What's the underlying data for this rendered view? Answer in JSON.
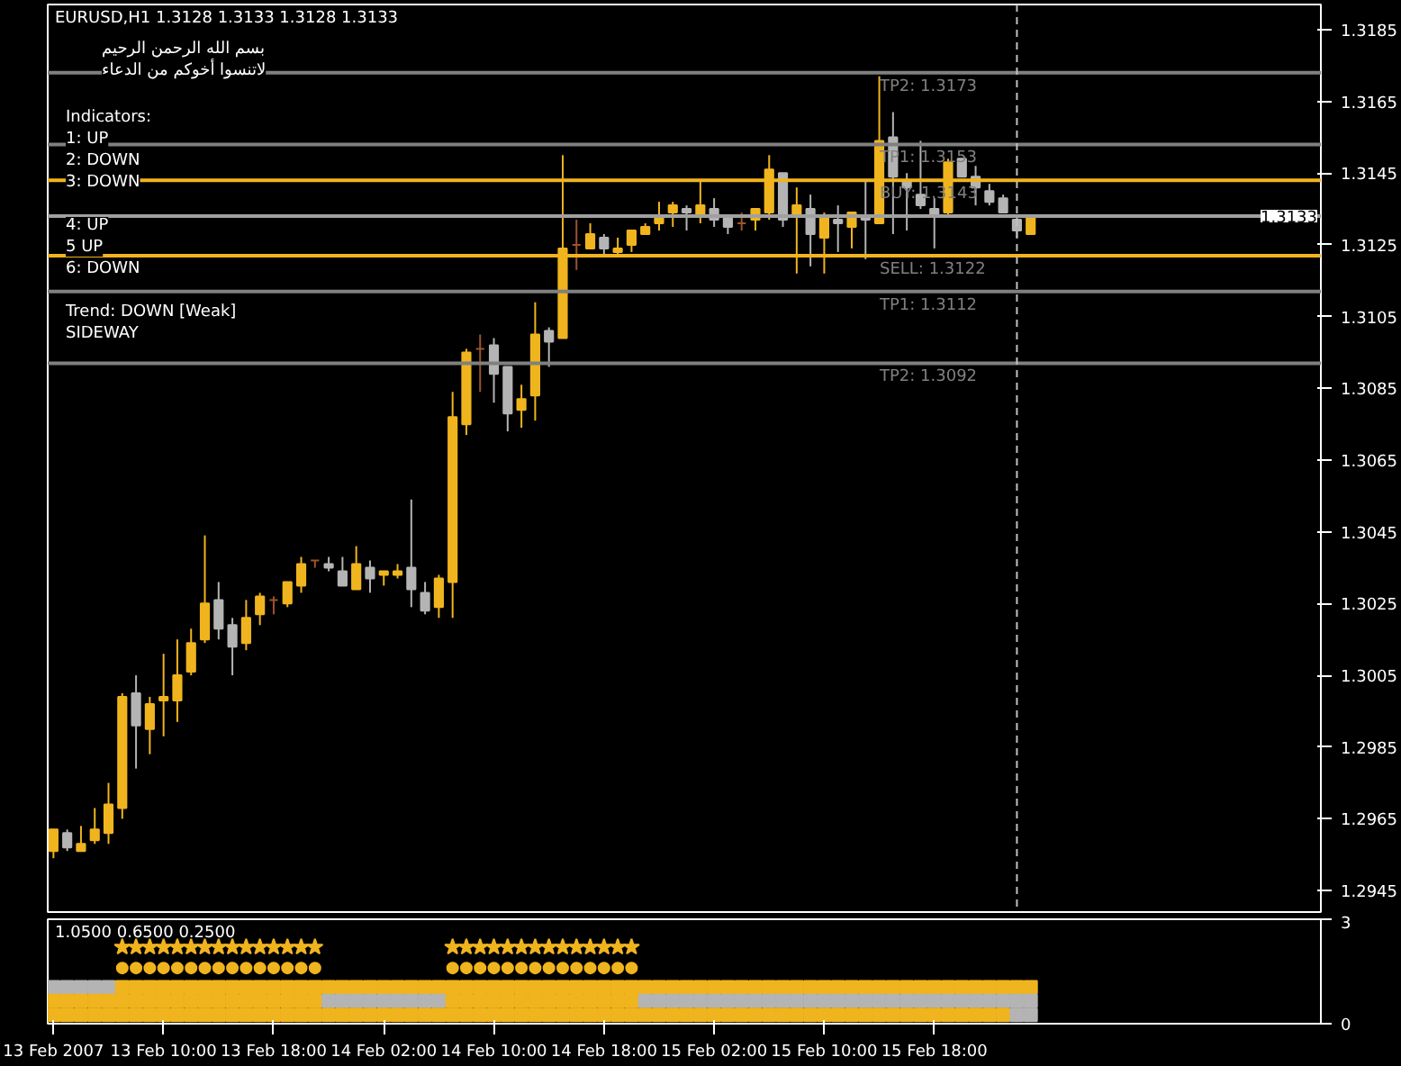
{
  "chart_data": [
    {
      "type": "candlestick",
      "title": "EURUSD,H1  1.3128 1.3133 1.3128 1.3133",
      "x": [
        "2007-02-13T02:00",
        "2007-02-13T03:00",
        "2007-02-13T04:00",
        "2007-02-13T05:00",
        "2007-02-13T06:00",
        "2007-02-13T07:00",
        "2007-02-13T08:00",
        "2007-02-13T09:00",
        "2007-02-13T10:00",
        "2007-02-13T11:00",
        "2007-02-13T12:00",
        "2007-02-13T13:00",
        "2007-02-13T14:00",
        "2007-02-13T15:00",
        "2007-02-13T16:00",
        "2007-02-13T17:00",
        "2007-02-13T18:00",
        "2007-02-13T19:00",
        "2007-02-13T20:00",
        "2007-02-13T21:00",
        "2007-02-13T22:00",
        "2007-02-13T23:00",
        "2007-02-14T00:00",
        "2007-02-14T01:00",
        "2007-02-14T02:00",
        "2007-02-14T03:00",
        "2007-02-14T04:00",
        "2007-02-14T05:00",
        "2007-02-14T06:00",
        "2007-02-14T07:00",
        "2007-02-14T08:00",
        "2007-02-14T09:00",
        "2007-02-14T10:00",
        "2007-02-14T11:00",
        "2007-02-14T12:00",
        "2007-02-14T13:00",
        "2007-02-14T14:00",
        "2007-02-14T15:00",
        "2007-02-14T16:00",
        "2007-02-14T17:00",
        "2007-02-14T18:00",
        "2007-02-14T19:00",
        "2007-02-14T20:00",
        "2007-02-14T21:00",
        "2007-02-14T22:00",
        "2007-02-14T23:00",
        "2007-02-15T00:00",
        "2007-02-15T01:00",
        "2007-02-15T02:00",
        "2007-02-15T03:00",
        "2007-02-15T04:00",
        "2007-02-15T05:00",
        "2007-02-15T06:00",
        "2007-02-15T07:00",
        "2007-02-15T08:00",
        "2007-02-15T09:00",
        "2007-02-15T10:00",
        "2007-02-15T11:00",
        "2007-02-15T12:00",
        "2007-02-15T13:00",
        "2007-02-15T14:00",
        "2007-02-15T15:00",
        "2007-02-15T16:00",
        "2007-02-15T17:00",
        "2007-02-15T18:00",
        "2007-02-15T19:00",
        "2007-02-15T20:00",
        "2007-02-15T21:00",
        "2007-02-15T22:00",
        "2007-02-15T23:00",
        "2007-02-16T00:00",
        "2007-02-16T01:00"
      ],
      "ohlc": [
        [
          1.2956,
          1.2962,
          1.2954,
          1.2962
        ],
        [
          1.2961,
          1.2962,
          1.2956,
          1.2957
        ],
        [
          1.2956,
          1.2963,
          1.2956,
          1.2958
        ],
        [
          1.2959,
          1.2968,
          1.2958,
          1.2962
        ],
        [
          1.2961,
          1.2975,
          1.2958,
          1.2969
        ],
        [
          1.2968,
          1.3,
          1.2965,
          1.2999
        ],
        [
          1.3,
          1.3005,
          1.2979,
          1.2991
        ],
        [
          1.299,
          1.2999,
          1.2983,
          1.2997
        ],
        [
          1.2998,
          1.3011,
          1.2988,
          1.2999
        ],
        [
          1.2998,
          1.3015,
          1.2992,
          1.3005
        ],
        [
          1.3006,
          1.3018,
          1.3005,
          1.3014
        ],
        [
          1.3015,
          1.3044,
          1.3014,
          1.3025
        ],
        [
          1.3026,
          1.3031,
          1.3015,
          1.3018
        ],
        [
          1.3019,
          1.3021,
          1.3005,
          1.3013
        ],
        [
          1.3014,
          1.3026,
          1.3012,
          1.3021
        ],
        [
          1.3022,
          1.3028,
          1.3019,
          1.3027
        ],
        [
          1.3026,
          1.3027,
          1.3022,
          1.3026
        ],
        [
          1.3025,
          1.3031,
          1.3024,
          1.3031
        ],
        [
          1.303,
          1.3038,
          1.3028,
          1.3036
        ],
        [
          1.3037,
          1.3037,
          1.3035,
          1.3037
        ],
        [
          1.3036,
          1.3038,
          1.3034,
          1.3035
        ],
        [
          1.3034,
          1.3038,
          1.303,
          1.303
        ],
        [
          1.3029,
          1.3041,
          1.3029,
          1.3036
        ],
        [
          1.3035,
          1.3037,
          1.3028,
          1.3032
        ],
        [
          1.3033,
          1.3034,
          1.303,
          1.3034
        ],
        [
          1.3033,
          1.3036,
          1.3032,
          1.3034
        ],
        [
          1.3035,
          1.3054,
          1.3024,
          1.3029
        ],
        [
          1.3028,
          1.3031,
          1.3022,
          1.3023
        ],
        [
          1.3024,
          1.3033,
          1.3021,
          1.3032
        ],
        [
          1.3031,
          1.3084,
          1.3021,
          1.3077
        ],
        [
          1.3075,
          1.3096,
          1.3072,
          1.3095
        ],
        [
          1.3096,
          1.31,
          1.3084,
          1.3096
        ],
        [
          1.3097,
          1.3099,
          1.3081,
          1.3089
        ],
        [
          1.3091,
          1.3091,
          1.3073,
          1.3078
        ],
        [
          1.3079,
          1.3086,
          1.3074,
          1.3082
        ],
        [
          1.3083,
          1.3109,
          1.3076,
          1.31
        ],
        [
          1.3101,
          1.3102,
          1.3091,
          1.3098
        ],
        [
          1.3099,
          1.315,
          1.3099,
          1.3124
        ],
        [
          1.3125,
          1.3132,
          1.3118,
          1.3125
        ],
        [
          1.3124,
          1.3131,
          1.3124,
          1.3128
        ],
        [
          1.3127,
          1.3128,
          1.3122,
          1.3124
        ],
        [
          1.3123,
          1.3127,
          1.3122,
          1.3124
        ],
        [
          1.3125,
          1.3129,
          1.3123,
          1.3129
        ],
        [
          1.3128,
          1.3131,
          1.3128,
          1.313
        ],
        [
          1.3131,
          1.3137,
          1.3129,
          1.3133
        ],
        [
          1.3134,
          1.3137,
          1.313,
          1.3136
        ],
        [
          1.3135,
          1.3136,
          1.3129,
          1.3134
        ],
        [
          1.3133,
          1.3143,
          1.3131,
          1.3136
        ],
        [
          1.3135,
          1.3138,
          1.313,
          1.3132
        ],
        [
          1.3133,
          1.3133,
          1.3128,
          1.313
        ],
        [
          1.3131,
          1.3134,
          1.3129,
          1.3131
        ],
        [
          1.3132,
          1.3135,
          1.3129,
          1.3135
        ],
        [
          1.3134,
          1.315,
          1.3132,
          1.3146
        ],
        [
          1.3145,
          1.3145,
          1.313,
          1.3132
        ],
        [
          1.3133,
          1.3141,
          1.3117,
          1.3136
        ],
        [
          1.3135,
          1.3139,
          1.3119,
          1.3128
        ],
        [
          1.3127,
          1.3134,
          1.3117,
          1.3133
        ],
        [
          1.3132,
          1.3136,
          1.3123,
          1.3131
        ],
        [
          1.313,
          1.3134,
          1.3124,
          1.3134
        ],
        [
          1.3133,
          1.3143,
          1.3121,
          1.3132
        ],
        [
          1.3131,
          1.3172,
          1.3131,
          1.3154
        ],
        [
          1.3155,
          1.3162,
          1.3128,
          1.3144
        ],
        [
          1.3143,
          1.3145,
          1.3129,
          1.3141
        ],
        [
          1.3139,
          1.3154,
          1.3135,
          1.3136
        ],
        [
          1.3135,
          1.3138,
          1.3124,
          1.3133
        ],
        [
          1.3134,
          1.3149,
          1.3133,
          1.3148
        ],
        [
          1.3149,
          1.3149,
          1.3144,
          1.3144
        ],
        [
          1.3144,
          1.3147,
          1.3136,
          1.3141
        ],
        [
          1.314,
          1.3142,
          1.3136,
          1.3137
        ],
        [
          1.3138,
          1.3139,
          1.3134,
          1.3134
        ],
        [
          1.3132,
          1.3133,
          1.3127,
          1.3129
        ],
        [
          1.3128,
          1.3133,
          1.3128,
          1.3133
        ]
      ],
      "colors": [
        "#f0b41e",
        "#b4b4b4",
        "#f0b41e",
        "#f0b41e",
        "#f0b41e",
        "#f0b41e",
        "#b4b4b4",
        "#f0b41e",
        "#f0b41e",
        "#f0b41e",
        "#f0b41e",
        "#f0b41e",
        "#b4b4b4",
        "#b4b4b4",
        "#f0b41e",
        "#f0b41e",
        "#a0522d",
        "#f0b41e",
        "#f0b41e",
        "#a0522d",
        "#b4b4b4",
        "#b4b4b4",
        "#f0b41e",
        "#b4b4b4",
        "#f0b41e",
        "#f0b41e",
        "#b4b4b4",
        "#b4b4b4",
        "#f0b41e",
        "#f0b41e",
        "#f0b41e",
        "#a0522d",
        "#b4b4b4",
        "#b4b4b4",
        "#f0b41e",
        "#f0b41e",
        "#b4b4b4",
        "#f0b41e",
        "#a0522d",
        "#f0b41e",
        "#b4b4b4",
        "#f0b41e",
        "#f0b41e",
        "#f0b41e",
        "#f0b41e",
        "#f0b41e",
        "#b4b4b4",
        "#f0b41e",
        "#b4b4b4",
        "#b4b4b4",
        "#a0522d",
        "#f0b41e",
        "#f0b41e",
        "#b4b4b4",
        "#f0b41e",
        "#b4b4b4",
        "#f0b41e",
        "#b4b4b4",
        "#f0b41e",
        "#b4b4b4",
        "#f0b41e",
        "#b4b4b4",
        "#b4b4b4",
        "#b4b4b4",
        "#b4b4b4",
        "#f0b41e",
        "#b4b4b4",
        "#b4b4b4",
        "#b4b4b4",
        "#b4b4b4",
        "#b4b4b4",
        "#f0b41e"
      ],
      "xlim": [
        "2007-02-13T01:35",
        "2007-02-16T22:05"
      ],
      "ylim": [
        1.2939,
        1.3192
      ],
      "yticks": [
        1.2945,
        1.2965,
        1.2985,
        1.3005,
        1.3025,
        1.3045,
        1.3065,
        1.3085,
        1.3105,
        1.3125,
        1.3145,
        1.3165,
        1.3185
      ],
      "tick_labels": "y",
      "grid": false,
      "ref_lines": [
        {
          "axis": "y",
          "value": 1.3173,
          "label": "TP2: 1.3173",
          "color": "#808080"
        },
        {
          "axis": "y",
          "value": 1.3153,
          "label": "TP1: 1.3153",
          "color": "#808080"
        },
        {
          "axis": "y",
          "value": 1.3143,
          "label": "BUY: 1.3143",
          "color": "#f0b41e"
        },
        {
          "axis": "y",
          "value": 1.3122,
          "label": "SELL: 1.3122",
          "color": "#f0b41e"
        },
        {
          "axis": "y",
          "value": 1.3112,
          "label": "TP1: 1.3112",
          "color": "#808080"
        },
        {
          "axis": "y",
          "value": 1.3092,
          "label": "TP2: 1.3092",
          "color": "#808080"
        },
        {
          "axis": "y",
          "value": 1.3133,
          "label": "1.3133",
          "color": "#a0a0a0"
        },
        {
          "axis": "x",
          "value": "2007-02-16T00:00",
          "color": "#c0c0c0",
          "line_style": "dashed"
        }
      ],
      "annotations": [
        "بسم الله الرحمن الرحيم",
        "لاتنسوا أخوكم من الدعاء",
        "Indicators:",
        "1: UP",
        "2: DOWN",
        "3: DOWN",
        "4: UP",
        "5 UP",
        "6: DOWN",
        "Trend: DOWN [Weak]",
        "SIDEWAY"
      ]
    },
    {
      "type": "scatter",
      "title": "1.0500 0.6500 0.2500",
      "x": [
        "2007-02-13T02:00",
        "2007-02-13T03:00",
        "2007-02-13T04:00",
        "2007-02-13T05:00",
        "2007-02-13T06:00",
        "2007-02-13T07:00",
        "2007-02-13T08:00",
        "2007-02-13T09:00",
        "2007-02-13T10:00",
        "2007-02-13T11:00",
        "2007-02-13T12:00",
        "2007-02-13T13:00",
        "2007-02-13T14:00",
        "2007-02-13T15:00",
        "2007-02-13T16:00",
        "2007-02-13T17:00",
        "2007-02-13T18:00",
        "2007-02-13T19:00",
        "2007-02-13T20:00",
        "2007-02-13T21:00",
        "2007-02-13T22:00",
        "2007-02-13T23:00",
        "2007-02-14T00:00",
        "2007-02-14T01:00",
        "2007-02-14T02:00",
        "2007-02-14T03:00",
        "2007-02-14T04:00",
        "2007-02-14T05:00",
        "2007-02-14T06:00",
        "2007-02-14T07:00",
        "2007-02-14T08:00",
        "2007-02-14T09:00",
        "2007-02-14T10:00",
        "2007-02-14T11:00",
        "2007-02-14T12:00",
        "2007-02-14T13:00",
        "2007-02-14T14:00",
        "2007-02-14T15:00",
        "2007-02-14T16:00",
        "2007-02-14T17:00",
        "2007-02-14T18:00",
        "2007-02-14T19:00",
        "2007-02-14T20:00",
        "2007-02-14T21:00",
        "2007-02-14T22:00",
        "2007-02-14T23:00",
        "2007-02-15T00:00",
        "2007-02-15T01:00",
        "2007-02-15T02:00",
        "2007-02-15T03:00",
        "2007-02-15T04:00",
        "2007-02-15T05:00",
        "2007-02-15T06:00",
        "2007-02-15T07:00",
        "2007-02-15T08:00",
        "2007-02-15T09:00",
        "2007-02-15T10:00",
        "2007-02-15T11:00",
        "2007-02-15T12:00",
        "2007-02-15T13:00",
        "2007-02-15T14:00",
        "2007-02-15T15:00",
        "2007-02-15T16:00",
        "2007-02-15T17:00",
        "2007-02-15T18:00",
        "2007-02-15T19:00",
        "2007-02-15T20:00",
        "2007-02-15T21:00",
        "2007-02-15T22:00",
        "2007-02-15T23:00",
        "2007-02-16T00:00",
        "2007-02-16T01:00"
      ],
      "series": [
        {
          "marker": "star",
          "color": "#f0b41e",
          "values": [
            null,
            null,
            null,
            null,
            null,
            2.2,
            2.2,
            2.2,
            2.2,
            2.2,
            2.2,
            2.2,
            2.2,
            2.2,
            2.2,
            2.2,
            2.2,
            2.2,
            2.2,
            2.2,
            null,
            null,
            null,
            null,
            null,
            null,
            null,
            null,
            null,
            2.2,
            2.2,
            2.2,
            2.2,
            2.2,
            2.2,
            2.2,
            2.2,
            2.2,
            2.2,
            2.2,
            2.2,
            2.2,
            2.2,
            null,
            null,
            null,
            null,
            null,
            null,
            null,
            null,
            null,
            null,
            null,
            null,
            null,
            null,
            null,
            null,
            null,
            null,
            null,
            null,
            null,
            null,
            null,
            null,
            null,
            null,
            null,
            null,
            null
          ]
        },
        {
          "marker": "circle",
          "color": "#f0b41e",
          "values": [
            null,
            null,
            null,
            null,
            null,
            1.6,
            1.6,
            1.6,
            1.6,
            1.6,
            1.6,
            1.6,
            1.6,
            1.6,
            1.6,
            1.6,
            1.6,
            1.6,
            1.6,
            1.6,
            null,
            null,
            null,
            null,
            null,
            null,
            null,
            null,
            null,
            1.6,
            1.6,
            1.6,
            1.6,
            1.6,
            1.6,
            1.6,
            1.6,
            1.6,
            1.6,
            1.6,
            1.6,
            1.6,
            1.6,
            null,
            null,
            null,
            null,
            null,
            null,
            null,
            null,
            null,
            null,
            null,
            null,
            null,
            null,
            null,
            null,
            null,
            null,
            null,
            null,
            null,
            null,
            null,
            null,
            null,
            null,
            null,
            null,
            null
          ]
        },
        {
          "marker": "square",
          "values": [
            1.05,
            1.05,
            1.05,
            1.05,
            1.05,
            1.05,
            1.05,
            1.05,
            1.05,
            1.05,
            1.05,
            1.05,
            1.05,
            1.05,
            1.05,
            1.05,
            1.05,
            1.05,
            1.05,
            1.05,
            1.05,
            1.05,
            1.05,
            1.05,
            1.05,
            1.05,
            1.05,
            1.05,
            1.05,
            1.05,
            1.05,
            1.05,
            1.05,
            1.05,
            1.05,
            1.05,
            1.05,
            1.05,
            1.05,
            1.05,
            1.05,
            1.05,
            1.05,
            1.05,
            1.05,
            1.05,
            1.05,
            1.05,
            1.05,
            1.05,
            1.05,
            1.05,
            1.05,
            1.05,
            1.05,
            1.05,
            1.05,
            1.05,
            1.05,
            1.05,
            1.05,
            1.05,
            1.05,
            1.05,
            1.05,
            1.05,
            1.05,
            1.05,
            1.05,
            1.05,
            1.05,
            1.05
          ],
          "colors": [
            "#b4b4b4",
            "#b4b4b4",
            "#b4b4b4",
            "#b4b4b4",
            "#b4b4b4",
            "#f0b41e",
            "#f0b41e",
            "#f0b41e",
            "#f0b41e",
            "#f0b41e",
            "#f0b41e",
            "#f0b41e",
            "#f0b41e",
            "#f0b41e",
            "#f0b41e",
            "#f0b41e",
            "#f0b41e",
            "#f0b41e",
            "#f0b41e",
            "#f0b41e",
            "#f0b41e",
            "#f0b41e",
            "#f0b41e",
            "#f0b41e",
            "#f0b41e",
            "#f0b41e",
            "#f0b41e",
            "#f0b41e",
            "#f0b41e",
            "#f0b41e",
            "#f0b41e",
            "#f0b41e",
            "#f0b41e",
            "#f0b41e",
            "#f0b41e",
            "#f0b41e",
            "#f0b41e",
            "#f0b41e",
            "#f0b41e",
            "#f0b41e",
            "#f0b41e",
            "#f0b41e",
            "#f0b41e",
            "#f0b41e",
            "#f0b41e",
            "#f0b41e",
            "#f0b41e",
            "#f0b41e",
            "#f0b41e",
            "#f0b41e",
            "#f0b41e",
            "#f0b41e",
            "#f0b41e",
            "#f0b41e",
            "#f0b41e",
            "#f0b41e",
            "#f0b41e",
            "#f0b41e",
            "#f0b41e",
            "#f0b41e",
            "#f0b41e",
            "#f0b41e",
            "#f0b41e",
            "#f0b41e",
            "#f0b41e",
            "#f0b41e",
            "#f0b41e",
            "#f0b41e",
            "#f0b41e",
            "#f0b41e",
            "#f0b41e",
            "#f0b41e"
          ]
        },
        {
          "marker": "square",
          "values": [
            0.65,
            0.65,
            0.65,
            0.65,
            0.65,
            0.65,
            0.65,
            0.65,
            0.65,
            0.65,
            0.65,
            0.65,
            0.65,
            0.65,
            0.65,
            0.65,
            0.65,
            0.65,
            0.65,
            0.65,
            0.65,
            0.65,
            0.65,
            0.65,
            0.65,
            0.65,
            0.65,
            0.65,
            0.65,
            0.65,
            0.65,
            0.65,
            0.65,
            0.65,
            0.65,
            0.65,
            0.65,
            0.65,
            0.65,
            0.65,
            0.65,
            0.65,
            0.65,
            0.65,
            0.65,
            0.65,
            0.65,
            0.65,
            0.65,
            0.65,
            0.65,
            0.65,
            0.65,
            0.65,
            0.65,
            0.65,
            0.65,
            0.65,
            0.65,
            0.65,
            0.65,
            0.65,
            0.65,
            0.65,
            0.65,
            0.65,
            0.65,
            0.65,
            0.65,
            0.65,
            0.65,
            0.65
          ],
          "colors": [
            "#f0b41e",
            "#f0b41e",
            "#f0b41e",
            "#f0b41e",
            "#f0b41e",
            "#f0b41e",
            "#f0b41e",
            "#f0b41e",
            "#f0b41e",
            "#f0b41e",
            "#f0b41e",
            "#f0b41e",
            "#f0b41e",
            "#f0b41e",
            "#f0b41e",
            "#f0b41e",
            "#f0b41e",
            "#f0b41e",
            "#f0b41e",
            "#f0b41e",
            "#b4b4b4",
            "#b4b4b4",
            "#b4b4b4",
            "#b4b4b4",
            "#b4b4b4",
            "#b4b4b4",
            "#b4b4b4",
            "#b4b4b4",
            "#b4b4b4",
            "#f0b41e",
            "#f0b41e",
            "#f0b41e",
            "#f0b41e",
            "#f0b41e",
            "#f0b41e",
            "#f0b41e",
            "#f0b41e",
            "#f0b41e",
            "#f0b41e",
            "#f0b41e",
            "#f0b41e",
            "#f0b41e",
            "#f0b41e",
            "#b4b4b4",
            "#b4b4b4",
            "#b4b4b4",
            "#b4b4b4",
            "#b4b4b4",
            "#b4b4b4",
            "#b4b4b4",
            "#b4b4b4",
            "#b4b4b4",
            "#b4b4b4",
            "#b4b4b4",
            "#b4b4b4",
            "#b4b4b4",
            "#b4b4b4",
            "#b4b4b4",
            "#b4b4b4",
            "#b4b4b4",
            "#b4b4b4",
            "#b4b4b4",
            "#b4b4b4",
            "#b4b4b4",
            "#b4b4b4",
            "#b4b4b4",
            "#b4b4b4",
            "#b4b4b4",
            "#b4b4b4",
            "#b4b4b4",
            "#b4b4b4",
            "#b4b4b4"
          ]
        },
        {
          "marker": "square",
          "values": [
            0.25,
            0.25,
            0.25,
            0.25,
            0.25,
            0.25,
            0.25,
            0.25,
            0.25,
            0.25,
            0.25,
            0.25,
            0.25,
            0.25,
            0.25,
            0.25,
            0.25,
            0.25,
            0.25,
            0.25,
            0.25,
            0.25,
            0.25,
            0.25,
            0.25,
            0.25,
            0.25,
            0.25,
            0.25,
            0.25,
            0.25,
            0.25,
            0.25,
            0.25,
            0.25,
            0.25,
            0.25,
            0.25,
            0.25,
            0.25,
            0.25,
            0.25,
            0.25,
            0.25,
            0.25,
            0.25,
            0.25,
            0.25,
            0.25,
            0.25,
            0.25,
            0.25,
            0.25,
            0.25,
            0.25,
            0.25,
            0.25,
            0.25,
            0.25,
            0.25,
            0.25,
            0.25,
            0.25,
            0.25,
            0.25,
            0.25,
            0.25,
            0.25,
            0.25,
            0.25,
            0.25,
            0.25
          ],
          "colors": [
            "#f0b41e",
            "#f0b41e",
            "#f0b41e",
            "#f0b41e",
            "#f0b41e",
            "#f0b41e",
            "#f0b41e",
            "#f0b41e",
            "#f0b41e",
            "#f0b41e",
            "#f0b41e",
            "#f0b41e",
            "#f0b41e",
            "#f0b41e",
            "#f0b41e",
            "#f0b41e",
            "#f0b41e",
            "#f0b41e",
            "#f0b41e",
            "#f0b41e",
            "#f0b41e",
            "#f0b41e",
            "#f0b41e",
            "#f0b41e",
            "#f0b41e",
            "#f0b41e",
            "#f0b41e",
            "#f0b41e",
            "#f0b41e",
            "#f0b41e",
            "#f0b41e",
            "#f0b41e",
            "#f0b41e",
            "#f0b41e",
            "#f0b41e",
            "#f0b41e",
            "#f0b41e",
            "#f0b41e",
            "#f0b41e",
            "#f0b41e",
            "#f0b41e",
            "#f0b41e",
            "#f0b41e",
            "#f0b41e",
            "#f0b41e",
            "#f0b41e",
            "#f0b41e",
            "#f0b41e",
            "#f0b41e",
            "#f0b41e",
            "#f0b41e",
            "#f0b41e",
            "#f0b41e",
            "#f0b41e",
            "#f0b41e",
            "#f0b41e",
            "#f0b41e",
            "#f0b41e",
            "#f0b41e",
            "#f0b41e",
            "#f0b41e",
            "#f0b41e",
            "#f0b41e",
            "#f0b41e",
            "#f0b41e",
            "#f0b41e",
            "#f0b41e",
            "#f0b41e",
            "#f0b41e",
            "#f0b41e",
            "#b4b4b4",
            "#b4b4b4"
          ]
        }
      ],
      "xlim": [
        "2007-02-13T01:35",
        "2007-02-16T22:05"
      ],
      "ylim": [
        0,
        3
      ],
      "yticks": [
        0,
        3
      ],
      "xticks": [
        {
          "value": "2007-02-13T02:00",
          "label": "13 Feb 2007"
        },
        {
          "value": "2007-02-13T10:00",
          "label": "13 Feb 10:00"
        },
        {
          "value": "2007-02-13T18:00",
          "label": "13 Feb 18:00"
        },
        {
          "value": "2007-02-14T02:00",
          "label": "14 Feb 02:00"
        },
        {
          "value": "2007-02-14T10:00",
          "label": "14 Feb 10:00"
        },
        {
          "value": "2007-02-14T18:00",
          "label": "14 Feb 18:00"
        },
        {
          "value": "2007-02-15T02:00",
          "label": "15 Feb 02:00"
        },
        {
          "value": "2007-02-15T10:00",
          "label": "15 Feb 10:00"
        },
        {
          "value": "2007-02-15T18:00",
          "label": "15 Feb 18:00"
        }
      ],
      "grid": false
    }
  ]
}
